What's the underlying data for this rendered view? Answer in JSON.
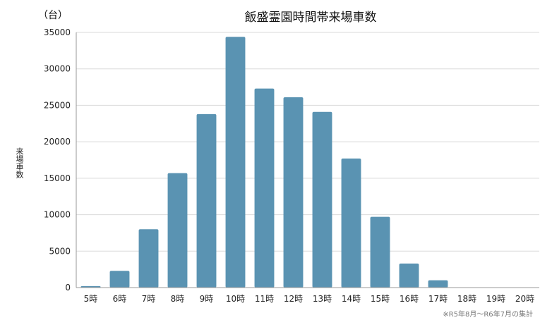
{
  "chart_data": {
    "type": "bar",
    "title": "飯盛霊園時間帯来場車数",
    "unit_label": "（台）",
    "ylabel": "来場車数",
    "xlabel": "",
    "footnote": "※R5年8月～R6年7月の集計",
    "ylim": [
      0,
      35000
    ],
    "yticks": [
      0,
      5000,
      10000,
      15000,
      20000,
      25000,
      30000,
      35000
    ],
    "grid": true,
    "categories": [
      "5時",
      "6時",
      "7時",
      "8時",
      "9時",
      "10時",
      "11時",
      "12時",
      "13時",
      "14時",
      "15時",
      "16時",
      "17時",
      "18時",
      "19時",
      "20時"
    ],
    "values": [
      200,
      2300,
      8000,
      15700,
      23800,
      34400,
      27300,
      26100,
      24100,
      17700,
      9700,
      3300,
      1000,
      0,
      0,
      0
    ],
    "bar_color": "#5a93b2",
    "grid_color": "#d9d9d9",
    "axis_color": "#999999"
  }
}
